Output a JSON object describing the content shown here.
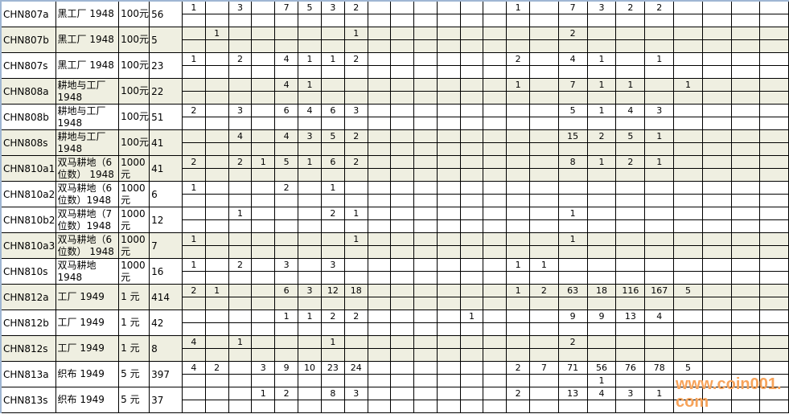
{
  "columns_count": 24,
  "rows": [
    {
      "code": "CHN807a",
      "name": "黑工厂 1948",
      "denom": "100元",
      "count": "56",
      "shaded": false,
      "top": [
        "1",
        "",
        "3",
        "",
        "7",
        "5",
        "3",
        "2",
        "",
        "",
        "",
        "",
        "",
        "",
        "1",
        "",
        "7",
        "3",
        "2",
        "2",
        "",
        "",
        "",
        ""
      ],
      "bottom": []
    },
    {
      "code": "CHN807b",
      "name": "黑工厂 1948",
      "denom": "100元",
      "count": "5",
      "shaded": true,
      "top": [
        "",
        "1",
        "",
        "",
        "",
        "",
        "",
        "1",
        "",
        "",
        "",
        "",
        "",
        "",
        "",
        "",
        "2",
        "",
        "",
        "",
        "",
        "",
        "",
        ""
      ],
      "bottom": []
    },
    {
      "code": "CHN807s",
      "name": "黑工厂 1948",
      "denom": "100元",
      "count": "23",
      "shaded": false,
      "top": [
        "1",
        "",
        "2",
        "",
        "4",
        "1",
        "1",
        "2",
        "",
        "",
        "",
        "",
        "",
        "",
        "2",
        "",
        "4",
        "1",
        "",
        "1",
        "",
        "",
        "",
        ""
      ],
      "bottom": []
    },
    {
      "code": "CHN808a",
      "name": "耕地与工厂 1948",
      "denom": "100元",
      "count": "22",
      "shaded": true,
      "top": [
        "",
        "",
        "",
        "",
        "4",
        "1",
        "",
        "",
        "",
        "",
        "",
        "",
        "",
        "",
        "1",
        "",
        "7",
        "1",
        "1",
        "",
        "1",
        "",
        "",
        ""
      ],
      "bottom": []
    },
    {
      "code": "CHN808b",
      "name": "耕地与工厂 1948",
      "denom": "100元",
      "count": "51",
      "shaded": false,
      "top": [
        "2",
        "",
        "3",
        "",
        "6",
        "4",
        "6",
        "3",
        "",
        "",
        "",
        "",
        "",
        "",
        "",
        "",
        "5",
        "1",
        "4",
        "3",
        "",
        "",
        "",
        ""
      ],
      "bottom": []
    },
    {
      "code": "CHN808s",
      "name": "耕地与工厂 1948",
      "denom": "100元",
      "count": "41",
      "shaded": true,
      "top": [
        "",
        "",
        "4",
        "",
        "4",
        "3",
        "5",
        "2",
        "",
        "",
        "",
        "",
        "",
        "",
        "",
        "",
        "15",
        "2",
        "5",
        "1",
        "",
        "",
        "",
        ""
      ],
      "bottom": []
    },
    {
      "code": "CHN810a1",
      "name": "双马耕地（6位数） 1948",
      "denom": "1000元",
      "count": "41",
      "shaded": true,
      "top": [
        "2",
        "",
        "2",
        "1",
        "5",
        "1",
        "6",
        "2",
        "",
        "",
        "",
        "",
        "",
        "",
        "",
        "",
        "8",
        "1",
        "2",
        "1",
        "",
        "",
        "",
        ""
      ],
      "bottom": []
    },
    {
      "code": "CHN810a2",
      "name": "双马耕地（6位数）1948",
      "denom": "1000元",
      "count": "6",
      "shaded": false,
      "top": [
        "1",
        "",
        "",
        "",
        "2",
        "",
        "1",
        "",
        "",
        "",
        "",
        "",
        "",
        "",
        "",
        "",
        "",
        "",
        "",
        "",
        "",
        "",
        "",
        ""
      ],
      "bottom": []
    },
    {
      "code": "CHN810b2",
      "name": "双马耕地（7位数）1948",
      "denom": "1000元",
      "count": "12",
      "shaded": false,
      "top": [
        "",
        "",
        "1",
        "",
        "",
        "",
        "2",
        "1",
        "",
        "",
        "",
        "",
        "",
        "",
        "",
        "",
        "1",
        "",
        "",
        "",
        "",
        "",
        "",
        ""
      ],
      "bottom": []
    },
    {
      "code": "CHN810a3",
      "name": "双马耕地（6位数） 1948",
      "denom": "1000元",
      "count": "7",
      "shaded": true,
      "top": [
        "1",
        "",
        "",
        "",
        "",
        "",
        "",
        "1",
        "",
        "",
        "",
        "",
        "",
        "",
        "",
        "",
        "1",
        "",
        "",
        "",
        "",
        "",
        "",
        ""
      ],
      "bottom": []
    },
    {
      "code": "CHN810s",
      "name": "双马耕地 1948",
      "denom": "1000元",
      "count": "16",
      "shaded": false,
      "top": [
        "1",
        "",
        "2",
        "",
        "3",
        "",
        "3",
        "",
        "",
        "",
        "",
        "",
        "",
        "",
        "1",
        "1",
        "",
        "",
        "",
        "",
        "",
        "",
        "",
        ""
      ],
      "bottom": []
    },
    {
      "code": "CHN812a",
      "name": "工厂 1949",
      "denom": "1 元",
      "count": "414",
      "shaded": true,
      "top": [
        "2",
        "1",
        "",
        "",
        "6",
        "3",
        "12",
        "18",
        "",
        "",
        "",
        "",
        "",
        "",
        "1",
        "2",
        "63",
        "18",
        "116",
        "167",
        "5",
        "",
        "",
        ""
      ],
      "bottom": []
    },
    {
      "code": "CHN812b",
      "name": "工厂 1949",
      "denom": "1 元",
      "count": "42",
      "shaded": false,
      "top": [
        "",
        "",
        "",
        "",
        "1",
        "1",
        "2",
        "2",
        "",
        "",
        "",
        "",
        "1",
        "",
        "",
        "",
        "9",
        "9",
        "13",
        "4",
        "",
        "",
        "",
        ""
      ],
      "bottom": []
    },
    {
      "code": "CHN812s",
      "name": "工厂 1949",
      "denom": "1 元",
      "count": "8",
      "shaded": true,
      "top": [
        "4",
        "",
        "1",
        "",
        "",
        "",
        "1",
        "",
        "",
        "",
        "",
        "",
        "",
        "",
        "",
        "",
        "2",
        "",
        "",
        "",
        "",
        "",
        "",
        ""
      ],
      "bottom": []
    },
    {
      "code": "CHN813a",
      "name": "织布 1949",
      "denom": "5 元",
      "count": "397",
      "shaded": false,
      "top": [
        "4",
        "2",
        "",
        "3",
        "9",
        "10",
        "23",
        "24",
        "",
        "",
        "",
        "",
        "",
        "",
        "2",
        "7",
        "71",
        "56",
        "76",
        "78",
        "5",
        "",
        "",
        ""
      ],
      "bottom": [
        "",
        "",
        "",
        "",
        "",
        "",
        "",
        "",
        "",
        "",
        "",
        "",
        "",
        "",
        "",
        "",
        "",
        "1",
        "",
        "",
        "",
        "",
        "",
        ""
      ]
    },
    {
      "code": "CHN813s",
      "name": "织布 1949",
      "denom": "5 元",
      "count": "37",
      "shaded": false,
      "top": [
        "",
        "",
        "",
        "1",
        "2",
        "",
        "8",
        "3",
        "",
        "",
        "",
        "",
        "",
        "",
        "2",
        "",
        "13",
        "4",
        "3",
        "1",
        "",
        "",
        "",
        ""
      ],
      "bottom": []
    }
  ],
  "watermark": "www.coin001.com",
  "colors": {
    "shaded_row": "#efefe1",
    "grid": "#000000",
    "frame": "#9fb6d3",
    "watermark": "#f7a35a"
  }
}
